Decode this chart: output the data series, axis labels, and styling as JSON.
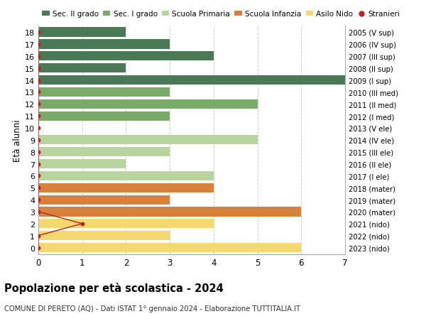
{
  "ages": [
    18,
    17,
    16,
    15,
    14,
    13,
    12,
    11,
    10,
    9,
    8,
    7,
    6,
    5,
    4,
    3,
    2,
    1,
    0
  ],
  "right_labels": [
    "2005 (V sup)",
    "2006 (IV sup)",
    "2007 (III sup)",
    "2008 (II sup)",
    "2009 (I sup)",
    "2010 (III med)",
    "2011 (II med)",
    "2012 (I med)",
    "2013 (V ele)",
    "2014 (IV ele)",
    "2015 (III ele)",
    "2016 (II ele)",
    "2017 (I ele)",
    "2018 (mater)",
    "2019 (mater)",
    "2020 (mater)",
    "2021 (nido)",
    "2022 (nido)",
    "2023 (nido)"
  ],
  "values": [
    2,
    3,
    4,
    2,
    7,
    3,
    5,
    3,
    0,
    5,
    3,
    2,
    4,
    4,
    3,
    6,
    4,
    3,
    6
  ],
  "colors": [
    "#4a7a55",
    "#4a7a55",
    "#4a7a55",
    "#4a7a55",
    "#4a7a55",
    "#7aab68",
    "#7aab68",
    "#7aab68",
    "#bad4a0",
    "#bad4a0",
    "#bad4a0",
    "#bad4a0",
    "#bad4a0",
    "#d9813a",
    "#d9813a",
    "#d9813a",
    "#f5d870",
    "#f5d870",
    "#f5d870"
  ],
  "stranieri_line_ages": [
    18,
    17,
    16,
    15,
    14,
    13,
    12,
    11,
    10,
    9,
    8,
    7,
    6,
    5,
    4,
    3,
    2,
    1,
    0
  ],
  "stranieri_line_x": [
    0,
    0,
    0,
    0,
    0,
    0,
    0,
    0,
    0,
    0,
    0,
    0,
    0,
    0,
    0,
    0,
    1,
    0,
    0
  ],
  "stranieri_dot_age": 2,
  "stranieri_dot_x": 1,
  "legend_labels": [
    "Sec. II grado",
    "Sec. I grado",
    "Scuola Primaria",
    "Scuola Infanzia",
    "Asilo Nido",
    "Stranieri"
  ],
  "legend_colors": [
    "#4a7a55",
    "#7aab68",
    "#bad4a0",
    "#d9813a",
    "#f5d870",
    "#bb2222"
  ],
  "title": "Popolazione per età scolastica - 2024",
  "subtitle": "COMUNE DI PERETO (AQ) - Dati ISTAT 1° gennaio 2024 - Elaborazione TUTTITALIA.IT",
  "ylabel": "Età alunni",
  "xlim": [
    0,
    7
  ],
  "ylim_min": -0.55,
  "ylim_max": 18.55,
  "bg_color": "#ffffff",
  "grid_color": "#cccccc"
}
